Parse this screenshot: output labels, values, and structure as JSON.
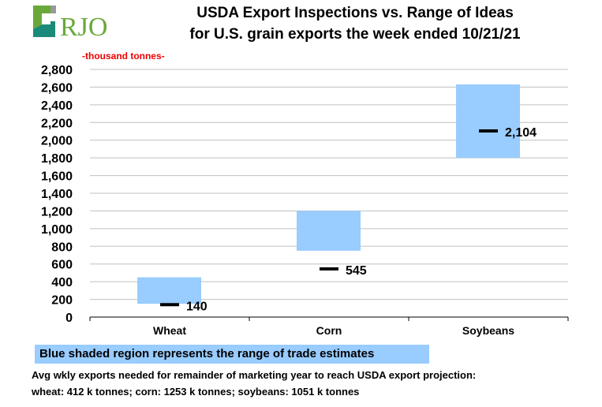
{
  "logo_text": "RJO",
  "chart_data": {
    "type": "range-bar",
    "title": [
      "USDA Export Inspections vs. Range of Ideas",
      "for U.S. grain exports the week ended 10/21/21"
    ],
    "ylabel": "-thousand tonnes-",
    "ylim": [
      0,
      2800
    ],
    "yticks": [
      0,
      200,
      400,
      600,
      800,
      1000,
      1200,
      1400,
      1600,
      1800,
      2000,
      2200,
      2400,
      2600,
      2800
    ],
    "ytick_labels": [
      "0",
      "200",
      "400",
      "600",
      "800",
      "1,000",
      "1,200",
      "1,400",
      "1,600",
      "1,800",
      "2,000",
      "2,200",
      "2,400",
      "2,600",
      "2,800"
    ],
    "categories": [
      "Wheat",
      "Corn",
      "Soybeans"
    ],
    "range_low": [
      150,
      750,
      1800
    ],
    "range_high": [
      450,
      1200,
      2630
    ],
    "actual": [
      140,
      545,
      2104
    ],
    "actual_labels": [
      "140",
      "545",
      "2,104"
    ],
    "grid": true,
    "range_color": "#99ccff"
  },
  "legend": "Blue shaded region represents the range of trade estimates",
  "notes": [
    "Avg wkly exports needed for remainder of marketing year to reach USDA export projection:",
    "wheat: 412 k tonnes; corn: 1253 k tonnes; soybeans: 1051 k tonnes"
  ]
}
